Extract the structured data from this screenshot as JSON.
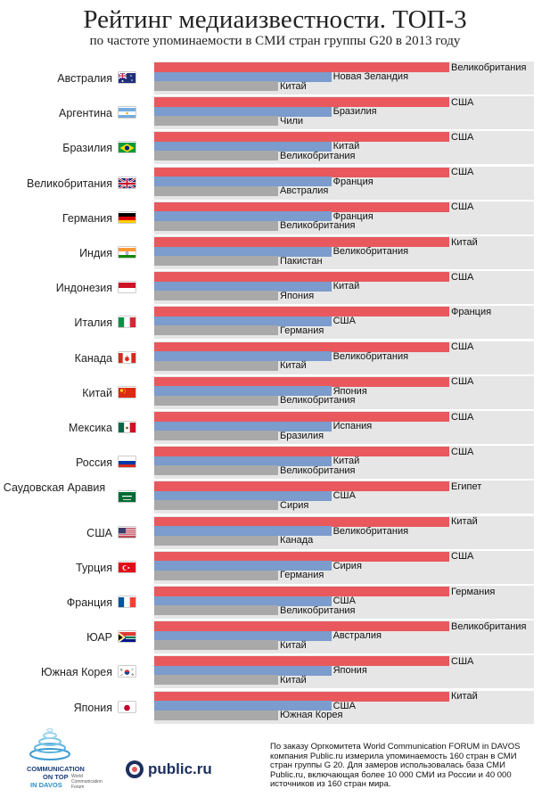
{
  "title": "Рейтинг медиаизвестности. ТОП-3",
  "subtitle": "по частоте упоминаемости в СМИ стран группы G20 в 2013 году",
  "colors": {
    "first": "#e8585d",
    "second": "#7b9ccc",
    "third": "#a9a9a9",
    "row_bg": "#e6e6e6"
  },
  "chart_data": {
    "type": "bar",
    "orientation": "horizontal",
    "legend": "none",
    "series_ranks": [
      "1",
      "2",
      "3"
    ],
    "relative_lengths": [
      1.0,
      0.6,
      0.42
    ],
    "rows": [
      {
        "country": "Австралия",
        "flag": "flag-australia",
        "top3": [
          "Великобритания",
          "Новая Зеландия",
          "Китай"
        ],
        "lengths": [
          1.0,
          0.6,
          0.42
        ]
      },
      {
        "country": "Аргентина",
        "flag": "flag-argentina",
        "top3": [
          "США",
          "Бразилия",
          "Чили"
        ],
        "lengths": [
          1.0,
          0.6,
          0.42
        ]
      },
      {
        "country": "Бразилия",
        "flag": "flag-brazil",
        "top3": [
          "США",
          "Китай",
          "Великобритания"
        ],
        "lengths": [
          1.0,
          0.6,
          0.42
        ]
      },
      {
        "country": "Великобритания",
        "flag": "flag-uk",
        "top3": [
          "США",
          "Франция",
          "Австралия"
        ],
        "lengths": [
          1.0,
          0.6,
          0.42
        ]
      },
      {
        "country": "Германия",
        "flag": "flag-germany",
        "top3": [
          "США",
          "Франция",
          "Великобритания"
        ],
        "lengths": [
          1.0,
          0.6,
          0.42
        ]
      },
      {
        "country": "Индия",
        "flag": "flag-india",
        "top3": [
          "Китай",
          "Великобритания",
          "Пакистан"
        ],
        "lengths": [
          1.0,
          0.6,
          0.42
        ]
      },
      {
        "country": "Индонезия",
        "flag": "flag-indonesia",
        "top3": [
          "США",
          "Китай",
          "Япония"
        ],
        "lengths": [
          1.0,
          0.6,
          0.42
        ]
      },
      {
        "country": "Италия",
        "flag": "flag-italy",
        "top3": [
          "Франция",
          "США",
          "Германия"
        ],
        "lengths": [
          1.0,
          0.6,
          0.42
        ]
      },
      {
        "country": "Канада",
        "flag": "flag-canada",
        "top3": [
          "США",
          "Великобритания",
          "Китай"
        ],
        "lengths": [
          1.0,
          0.6,
          0.42
        ]
      },
      {
        "country": "Китай",
        "flag": "flag-china",
        "top3": [
          "США",
          "Япония",
          "Великобритания"
        ],
        "lengths": [
          1.0,
          0.6,
          0.42
        ]
      },
      {
        "country": "Мексика",
        "flag": "flag-mexico",
        "top3": [
          "США",
          "Испания",
          "Бразилия"
        ],
        "lengths": [
          1.0,
          0.6,
          0.42
        ]
      },
      {
        "country": "Россия",
        "flag": "flag-russia",
        "top3": [
          "США",
          "Китай",
          "Великобритания"
        ],
        "lengths": [
          1.0,
          0.6,
          0.42
        ]
      },
      {
        "country": "Саудовская Аравия",
        "flag": "flag-saudi-arabia",
        "top3": [
          "Египет",
          "США",
          "Сирия"
        ],
        "lengths": [
          1.0,
          0.6,
          0.42
        ]
      },
      {
        "country": "США",
        "flag": "flag-usa",
        "top3": [
          "Китай",
          "Великобритания",
          "Канада"
        ],
        "lengths": [
          1.0,
          0.6,
          0.42
        ]
      },
      {
        "country": "Турция",
        "flag": "flag-turkey",
        "top3": [
          "США",
          "Сирия",
          "Германия"
        ],
        "lengths": [
          1.0,
          0.6,
          0.42
        ]
      },
      {
        "country": "Франция",
        "flag": "flag-france",
        "top3": [
          "Германия",
          "США",
          "Великобритания"
        ],
        "lengths": [
          1.0,
          0.6,
          0.42
        ]
      },
      {
        "country": "ЮАР",
        "flag": "flag-south-africa",
        "top3": [
          "Великобритания",
          "Австралия",
          "Китай"
        ],
        "lengths": [
          1.0,
          0.6,
          0.42
        ]
      },
      {
        "country": "Южная Корея",
        "flag": "flag-south-korea",
        "top3": [
          "США",
          "Япония",
          "Китай"
        ],
        "lengths": [
          1.0,
          0.6,
          0.42
        ]
      },
      {
        "country": "Япония",
        "flag": "flag-japan",
        "top3": [
          "Китай",
          "США",
          "Южная Корея"
        ],
        "lengths": [
          1.0,
          0.6,
          0.42
        ]
      }
    ]
  },
  "footer": {
    "note": "По заказу Оргкомитета World Communication FORUM in DAVOS компания Public.ru измерила упоминаемость 160 стран в СМИ стран группы G 20. Для замеров использовалась база СМИ Public.ru, включающая более 10 000 СМИ из России и 40 000 источников из 160 стран мира.",
    "logo1_line1": "COMMUNICATION",
    "logo1_line2": "ON TOP",
    "logo1_line3": "IN DAVOS",
    "logo1_small": "World Communication Forum",
    "logo2": "public.ru",
    "logo1_icon": "concentric-rings-logo",
    "logo2_icon": "public-ru-logo"
  }
}
